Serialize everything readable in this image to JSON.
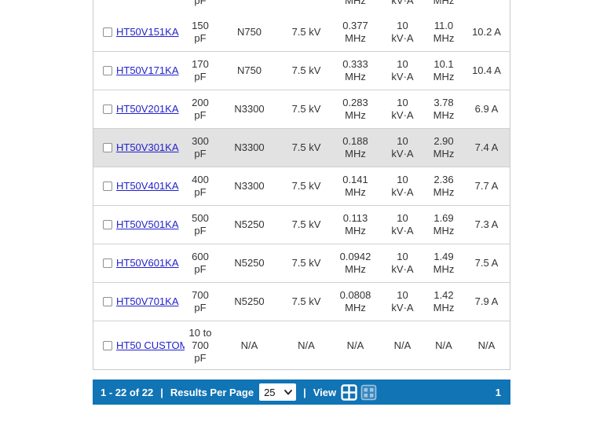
{
  "colors": {
    "bar_blue": "#1174b5",
    "row_highlight": "#e2e2e2",
    "link_blue": "#2222cc",
    "border_gray": "#d0d0d0"
  },
  "table": {
    "partial_row": {
      "cap_unit": "pF",
      "freq1_unit": "MHz",
      "kva_unit": "kV·A",
      "freq2_unit": "MHz"
    },
    "rows": [
      {
        "part": "HT50V151KA",
        "cap": [
          "150",
          "pF"
        ],
        "dielectric": "N750",
        "voltage": "7.5 kV",
        "freq1": [
          "0.377",
          "MHz"
        ],
        "kva": [
          "10",
          "kV·A"
        ],
        "freq2": [
          "11.0",
          "MHz"
        ],
        "current": "10.2 A",
        "highlighted": false,
        "tall": false
      },
      {
        "part": "HT50V171KA",
        "cap": [
          "170",
          "pF"
        ],
        "dielectric": "N750",
        "voltage": "7.5 kV",
        "freq1": [
          "0.333",
          "MHz"
        ],
        "kva": [
          "10",
          "kV·A"
        ],
        "freq2": [
          "10.1",
          "MHz"
        ],
        "current": "10.4 A",
        "highlighted": false,
        "tall": false
      },
      {
        "part": "HT50V201KA",
        "cap": [
          "200",
          "pF"
        ],
        "dielectric": "N3300",
        "voltage": "7.5 kV",
        "freq1": [
          "0.283",
          "MHz"
        ],
        "kva": [
          "10",
          "kV·A"
        ],
        "freq2": [
          "3.78",
          "MHz"
        ],
        "current": "6.9 A",
        "highlighted": false,
        "tall": false
      },
      {
        "part": "HT50V301KA",
        "cap": [
          "300",
          "pF"
        ],
        "dielectric": "N3300",
        "voltage": "7.5 kV",
        "freq1": [
          "0.188",
          "MHz"
        ],
        "kva": [
          "10",
          "kV·A"
        ],
        "freq2": [
          "2.90",
          "MHz"
        ],
        "current": "7.4 A",
        "highlighted": true,
        "tall": false
      },
      {
        "part": "HT50V401KA",
        "cap": [
          "400",
          "pF"
        ],
        "dielectric": "N3300",
        "voltage": "7.5 kV",
        "freq1": [
          "0.141",
          "MHz"
        ],
        "kva": [
          "10",
          "kV·A"
        ],
        "freq2": [
          "2.36",
          "MHz"
        ],
        "current": "7.7 A",
        "highlighted": false,
        "tall": false
      },
      {
        "part": "HT50V501KA",
        "cap": [
          "500",
          "pF"
        ],
        "dielectric": "N5250",
        "voltage": "7.5 kV",
        "freq1": [
          "0.113",
          "MHz"
        ],
        "kva": [
          "10",
          "kV·A"
        ],
        "freq2": [
          "1.69",
          "MHz"
        ],
        "current": "7.3 A",
        "highlighted": false,
        "tall": false
      },
      {
        "part": "HT50V601KA",
        "cap": [
          "600",
          "pF"
        ],
        "dielectric": "N5250",
        "voltage": "7.5 kV",
        "freq1": [
          "0.0942",
          "MHz"
        ],
        "kva": [
          "10",
          "kV·A"
        ],
        "freq2": [
          "1.49",
          "MHz"
        ],
        "current": "7.5 A",
        "highlighted": false,
        "tall": false
      },
      {
        "part": "HT50V701KA",
        "cap": [
          "700",
          "pF"
        ],
        "dielectric": "N5250",
        "voltage": "7.5 kV",
        "freq1": [
          "0.0808",
          "MHz"
        ],
        "kva": [
          "10",
          "kV·A"
        ],
        "freq2": [
          "1.42",
          "MHz"
        ],
        "current": "7.9 A",
        "highlighted": false,
        "tall": false
      },
      {
        "part": "HT50 CUSTOM",
        "cap": [
          "10 to",
          "700",
          "pF"
        ],
        "dielectric": "N/A",
        "voltage": "N/A",
        "freq1": [
          "N/A"
        ],
        "kva": [
          "N/A"
        ],
        "freq2": [
          "N/A"
        ],
        "current": "N/A",
        "highlighted": false,
        "tall": true
      }
    ]
  },
  "pagination": {
    "range_text": "1 - 22 of 22",
    "separator": "|",
    "results_per_page_label": "Results Per Page",
    "per_page_value": "25",
    "view_label": "View",
    "current_page": "1"
  }
}
